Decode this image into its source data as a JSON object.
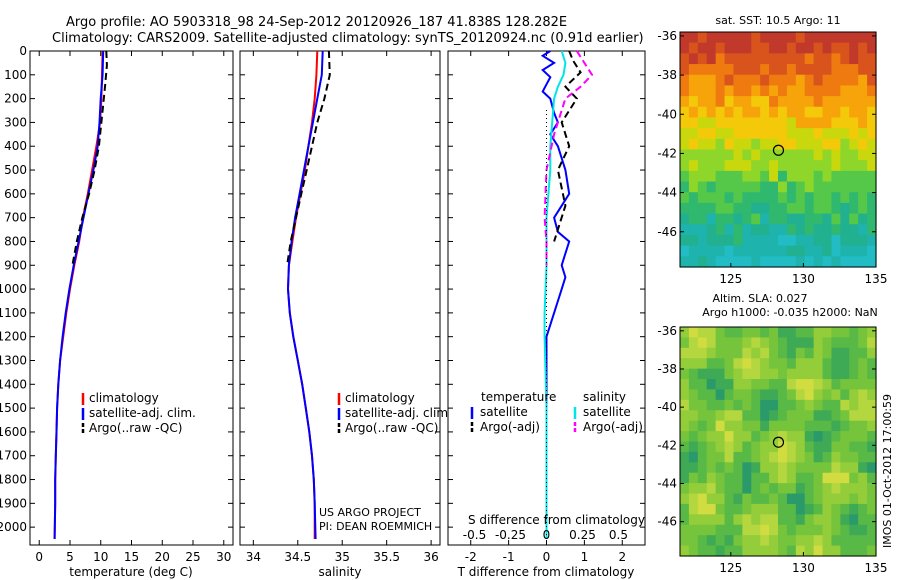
{
  "header": {
    "title_line1": "Argo profile: AO 5903318_98 24-Sep-2012 20120926_187 41.838S 128.282E",
    "title_line2": "Climatology: CARS2009. Satellite-adjusted climatology: synTS_20120924.nc (0.91d earlier)"
  },
  "credit": "IMOS 01-Oct-2012 17:00:59",
  "project_note": [
    "US ARGO PROJECT",
    "PI: DEAN ROEMMICH"
  ],
  "colors": {
    "climatology": "#ff0000",
    "satellite": "#0000ff",
    "argo": "#000000",
    "salinity_satellite": "#00e5e5",
    "salinity_argo": "#ff00ff",
    "marker": "#000000"
  },
  "chart_data": [
    {
      "type": "line",
      "name": "temperature",
      "xlabel": "temperature (deg C)",
      "ylabel": "",
      "xlim": [
        -1.5,
        31.5
      ],
      "ylim": [
        2075,
        0
      ],
      "xticks": [
        "0",
        "5",
        "10",
        "15",
        "20",
        "25",
        "30"
      ],
      "xtick_values": [
        0,
        5,
        10,
        15,
        20,
        25,
        30
      ],
      "yticks": [
        "0",
        "100",
        "200",
        "300",
        "400",
        "500",
        "600",
        "700",
        "800",
        "900",
        "1000",
        "1100",
        "1200",
        "1300",
        "1400",
        "1500",
        "1600",
        "1700",
        "1800",
        "1900",
        "2000"
      ],
      "ytick_values": [
        0,
        100,
        200,
        300,
        400,
        500,
        600,
        700,
        800,
        900,
        1000,
        1100,
        1200,
        1300,
        1400,
        1500,
        1600,
        1700,
        1800,
        1900,
        2000
      ],
      "legend": {
        "position": "lower-center",
        "entries": [
          "climatology",
          "satellite-adj. clim.",
          "Argo(..raw -QC)"
        ]
      },
      "series": [
        {
          "name": "climatology",
          "color": "#ff0000",
          "style": "solid",
          "x": [
            10.3,
            10.2,
            10.1,
            9.9,
            9.3,
            8.6,
            7.9,
            7.1,
            6.5,
            5.7,
            5.0,
            4.4,
            3.9,
            3.4,
            3.1,
            2.9,
            2.8,
            2.7,
            2.6,
            2.6,
            2.5
          ],
          "y": [
            0,
            100,
            200,
            300,
            400,
            500,
            600,
            700,
            800,
            900,
            1000,
            1100,
            1200,
            1300,
            1400,
            1500,
            1600,
            1700,
            1800,
            1900,
            2050
          ]
        },
        {
          "name": "satellite-adj. clim.",
          "color": "#0000ff",
          "style": "solid",
          "x": [
            10.4,
            10.3,
            10.0,
            9.8,
            9.5,
            8.8,
            8.0,
            7.2,
            6.4,
            5.6,
            4.9,
            4.3,
            3.8,
            3.4,
            3.1,
            2.9,
            2.8,
            2.7,
            2.6,
            2.6,
            2.5
          ],
          "y": [
            0,
            100,
            200,
            300,
            400,
            500,
            600,
            700,
            800,
            900,
            1000,
            1100,
            1200,
            1300,
            1400,
            1500,
            1600,
            1700,
            1800,
            1900,
            2050
          ]
        },
        {
          "name": "Argo(..raw -QC)",
          "color": "#000000",
          "style": "dashed",
          "x": [
            10.9,
            11.0,
            10.7,
            10.3,
            9.7,
            9.0,
            8.1,
            7.0,
            6.1,
            5.4
          ],
          "y": [
            0,
            60,
            150,
            250,
            400,
            500,
            600,
            700,
            800,
            900
          ]
        }
      ]
    },
    {
      "type": "line",
      "name": "salinity",
      "xlabel": "salinity",
      "ylabel": "",
      "xlim": [
        33.85,
        36.1
      ],
      "ylim": [
        2075,
        0
      ],
      "xticks": [
        "34",
        "34.5",
        "35",
        "35.5",
        "36"
      ],
      "xtick_values": [
        34,
        34.5,
        35,
        35.5,
        36
      ],
      "legend": {
        "position": "lower-center",
        "entries": [
          "climatology",
          "satellite-adj. clim.",
          "Argo(..raw -QC)"
        ]
      },
      "series": [
        {
          "name": "climatology",
          "color": "#ff0000",
          "style": "solid",
          "x": [
            34.72,
            34.71,
            34.69,
            34.66,
            34.62,
            34.58,
            34.53,
            34.48,
            34.44,
            34.4,
            34.39,
            34.41,
            34.45,
            34.5,
            34.55,
            34.59,
            34.63,
            34.66,
            34.68,
            34.69,
            34.69
          ],
          "y": [
            0,
            100,
            200,
            300,
            400,
            500,
            600,
            700,
            800,
            900,
            1000,
            1100,
            1200,
            1300,
            1400,
            1500,
            1600,
            1700,
            1800,
            1900,
            2050
          ]
        },
        {
          "name": "satellite-adj. clim.",
          "color": "#0000ff",
          "style": "solid",
          "x": [
            34.78,
            34.77,
            34.72,
            34.67,
            34.62,
            34.57,
            34.52,
            34.47,
            34.43,
            34.4,
            34.39,
            34.41,
            34.45,
            34.5,
            34.55,
            34.59,
            34.63,
            34.66,
            34.68,
            34.69,
            34.7
          ],
          "y": [
            0,
            100,
            200,
            300,
            400,
            500,
            600,
            700,
            800,
            900,
            1000,
            1100,
            1200,
            1300,
            1400,
            1500,
            1600,
            1700,
            1800,
            1900,
            2050
          ]
        },
        {
          "name": "Argo(..raw -QC)",
          "color": "#000000",
          "style": "dashed",
          "x": [
            34.85,
            34.86,
            34.8,
            34.72,
            34.66,
            34.6,
            34.54,
            34.48,
            34.42,
            34.38
          ],
          "y": [
            0,
            100,
            200,
            300,
            400,
            500,
            600,
            700,
            800,
            900
          ]
        }
      ]
    },
    {
      "type": "line",
      "name": "difference",
      "xlabel": "T difference from climatology",
      "xlabel2": "S difference from climatology",
      "xlim": [
        -2.6,
        2.6
      ],
      "ylim": [
        2075,
        0
      ],
      "xticks": [
        "-2",
        "-1",
        "0",
        "1",
        "2"
      ],
      "xtick_values": [
        -2,
        -1,
        0,
        1,
        2
      ],
      "sticks": [
        "-0.5",
        "-0.25",
        "0",
        "0.25",
        "0.5"
      ],
      "stick_values": [
        -1.9,
        -0.95,
        0,
        0.95,
        1.9
      ],
      "legend": {
        "position": "lower-center",
        "headers": [
          "temperature",
          "salinity"
        ],
        "entries": [
          "satellite",
          "Argo(-adj)",
          "satellite",
          "Argo(-adj)"
        ]
      },
      "series": [
        {
          "name": "temperature satellite",
          "color": "#0000ff",
          "style": "solid",
          "x": [
            0.1,
            -0.1,
            0.2,
            -0.1,
            0.1,
            0.0,
            -0.1,
            0.1,
            0.2,
            0.3,
            0.1,
            0.3,
            0.5,
            0.6,
            0.4,
            0.2,
            0.3,
            0.6,
            0.5,
            0.4,
            0.5,
            0.4,
            0.3,
            0.2,
            0.0,
            0.0,
            0.0,
            0.0
          ],
          "y": [
            0,
            20,
            50,
            80,
            110,
            140,
            170,
            200,
            260,
            300,
            350,
            400,
            500,
            600,
            650,
            700,
            760,
            800,
            850,
            900,
            950,
            1000,
            1050,
            1100,
            1200,
            1500,
            1800,
            2050
          ]
        },
        {
          "name": "temperature Argo(-adj)",
          "color": "#000000",
          "style": "dashed",
          "x": [
            0.6,
            0.7,
            0.9,
            0.5,
            0.8,
            0.4,
            0.6,
            0.3,
            0.5,
            0.2
          ],
          "y": [
            0,
            40,
            90,
            150,
            200,
            300,
            400,
            500,
            650,
            800
          ]
        },
        {
          "name": "salinity satellite",
          "color": "#00e5e5",
          "style": "solid",
          "x": [
            0.4,
            0.5,
            0.45,
            0.3,
            0.2,
            0.15,
            0.1,
            0.1,
            0.05,
            0.0,
            0.0,
            0.0,
            -0.05,
            -0.05,
            0.0,
            0.0
          ],
          "y": [
            0,
            50,
            100,
            150,
            200,
            300,
            400,
            500,
            600,
            700,
            800,
            900,
            1100,
            1200,
            1500,
            2050
          ]
        },
        {
          "name": "salinity Argo(-adj)",
          "color": "#ff00ff",
          "style": "dashed",
          "x": [
            0.8,
            1.0,
            1.2,
            0.9,
            0.5,
            0.2,
            0.0,
            -0.05,
            0.0,
            0.0
          ],
          "y": [
            0,
            50,
            100,
            150,
            200,
            350,
            500,
            700,
            800,
            900
          ]
        }
      ]
    },
    {
      "type": "heatmap",
      "name": "sat-sst-map",
      "title": "sat. SST: 10.5 Argo: 11",
      "xlim": [
        121.5,
        135
      ],
      "ylim": [
        -47.8,
        -35.8
      ],
      "xticks": [
        "125",
        "130",
        "135"
      ],
      "xtick_values": [
        125,
        130,
        135
      ],
      "yticks": [
        "-36",
        "-38",
        "-40",
        "-42",
        "-44",
        "-46"
      ],
      "ytick_values": [
        -36,
        -38,
        -40,
        -42,
        -44,
        -46
      ],
      "marker": {
        "lon": 128.282,
        "lat": -41.838
      }
    },
    {
      "type": "heatmap",
      "name": "altimetry-map",
      "title_line1": "Altim. SLA: 0.027",
      "title_line2": "Argo h1000: -0.035 h2000: NaN",
      "xlim": [
        121.5,
        135
      ],
      "ylim": [
        -47.8,
        -35.8
      ],
      "xticks": [
        "125",
        "130",
        "135"
      ],
      "xtick_values": [
        125,
        130,
        135
      ],
      "yticks": [
        "-36",
        "-38",
        "-40",
        "-42",
        "-44",
        "-46"
      ],
      "ytick_values": [
        -36,
        -38,
        -40,
        -42,
        -44,
        -46
      ],
      "marker": {
        "lon": 128.282,
        "lat": -41.838
      }
    }
  ]
}
